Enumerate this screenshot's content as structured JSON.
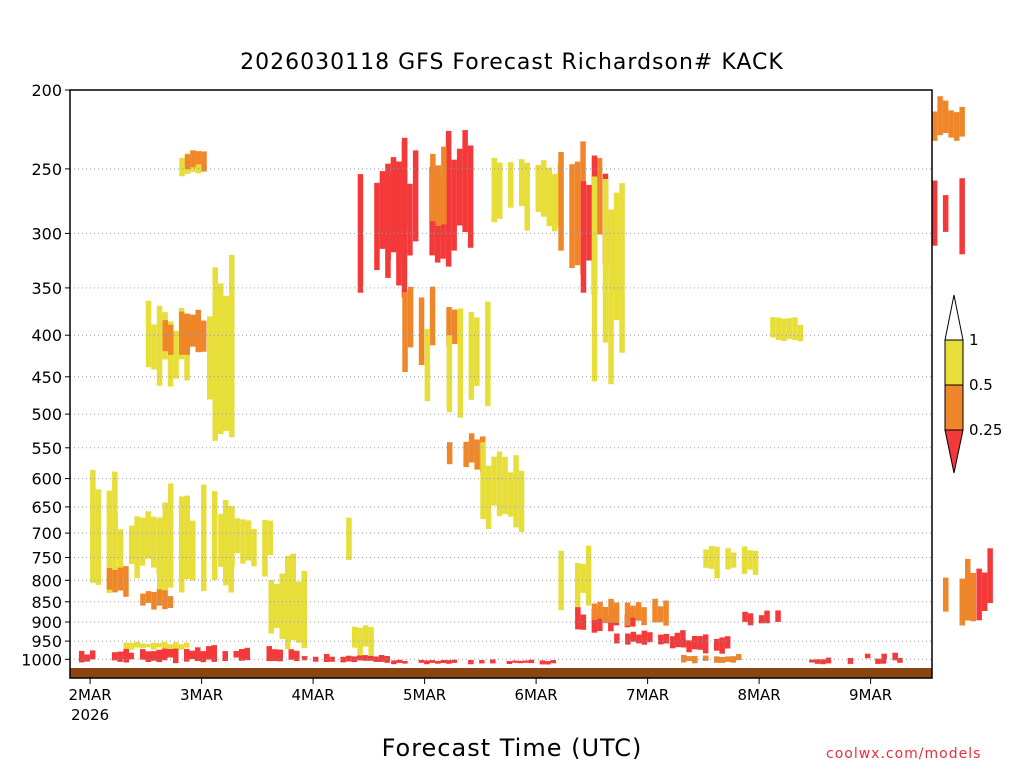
{
  "chart_data": {
    "type": "heatmap",
    "title": "2026030118 GFS Forecast Richardson# KACK",
    "xlabel": "Forecast Time (UTC)",
    "ylabel": "",
    "x_ticks": [
      "2MAR",
      "3MAR",
      "4MAR",
      "5MAR",
      "6MAR",
      "7MAR",
      "8MAR",
      "9MAR"
    ],
    "x_year_label": "2026",
    "y_ticks": [
      200,
      250,
      300,
      350,
      400,
      450,
      500,
      550,
      600,
      650,
      700,
      750,
      800,
      850,
      900,
      950,
      1000
    ],
    "y_scale": "log-pressure",
    "ylim": [
      1025,
      200
    ],
    "grid": "dotted horizontal at pressure levels",
    "legend": {
      "placement": "right",
      "labels": [
        "1",
        "0.5",
        "0.25"
      ],
      "bins": [
        {
          "range": "0.5-1",
          "color": "#e8de3a"
        },
        {
          "range": "0.25-0.5",
          "color": "#f0862a"
        },
        {
          "range": "<0.25",
          "color": "#f4393a"
        }
      ]
    },
    "colors": {
      "low": "#f4393a",
      "mid": "#f0862a",
      "high": "#e8de3a",
      "ground": "#8b4513"
    },
    "regions": [
      {
        "x": [
          1.0,
          1.3
        ],
        "p": [
          560,
          850
        ],
        "cat": "high"
      },
      {
        "x": [
          1.2,
          1.7
        ],
        "p": [
          650,
          800
        ],
        "cat": "high"
      },
      {
        "x": [
          1.6,
          2.3
        ],
        "p": [
          600,
          860
        ],
        "cat": "high"
      },
      {
        "x": [
          2.1,
          2.65
        ],
        "p": [
          640,
          800
        ],
        "cat": "high"
      },
      {
        "x": [
          1.5,
          1.9
        ],
        "p": [
          360,
          470
        ],
        "cat": "high"
      },
      {
        "x": [
          1.65,
          2.05
        ],
        "p": [
          370,
          430
        ],
        "cat": "mid"
      },
      {
        "x": [
          1.8,
          2.15
        ],
        "p": [
          235,
          262
        ],
        "cat": "high"
      },
      {
        "x": [
          1.85,
          2.05
        ],
        "p": [
          236,
          252
        ],
        "cat": "mid"
      },
      {
        "x": [
          1.95,
          2.35
        ],
        "p": [
          310,
          560
        ],
        "cat": "high"
      },
      {
        "x": [
          1.1,
          1.35
        ],
        "p": [
          760,
          840
        ],
        "cat": "mid"
      },
      {
        "x": [
          1.45,
          1.75
        ],
        "p": [
          820,
          870
        ],
        "cat": "mid"
      },
      {
        "x": [
          2.6,
          3.0
        ],
        "p": [
          740,
          980
        ],
        "cat": "high"
      },
      {
        "x": [
          3.25,
          3.55
        ],
        "p": [
          880,
          1000
        ],
        "cat": "high"
      },
      {
        "x": [
          3.1,
          3.4
        ],
        "p": [
          650,
          780
        ],
        "cat": "high"
      },
      {
        "x": [
          3.4,
          3.9
        ],
        "p": [
          230,
          360
        ],
        "cat": "low"
      },
      {
        "x": [
          3.55,
          4.45
        ],
        "p": [
          220,
          340
        ],
        "cat": "low"
      },
      {
        "x": [
          4.0,
          4.3
        ],
        "p": [
          230,
          300
        ],
        "cat": "mid"
      },
      {
        "x": [
          3.8,
          4.3
        ],
        "p": [
          340,
          450
        ],
        "cat": "mid"
      },
      {
        "x": [
          4.0,
          4.6
        ],
        "p": [
          360,
          520
        ],
        "cat": "high"
      },
      {
        "x": [
          4.2,
          4.55
        ],
        "p": [
          520,
          600
        ],
        "cat": "mid"
      },
      {
        "x": [
          4.5,
          4.9
        ],
        "p": [
          540,
          700
        ],
        "cat": "high"
      },
      {
        "x": [
          4.6,
          5.25
        ],
        "p": [
          240,
          300
        ],
        "cat": "high"
      },
      {
        "x": [
          5.15,
          5.6
        ],
        "p": [
          230,
          340
        ],
        "cat": "mid"
      },
      {
        "x": [
          5.4,
          5.75
        ],
        "p": [
          240,
          380
        ],
        "cat": "low"
      },
      {
        "x": [
          5.5,
          5.85
        ],
        "p": [
          230,
          470
        ],
        "cat": "high"
      },
      {
        "x": [
          5.2,
          5.5
        ],
        "p": [
          720,
          880
        ],
        "cat": "high"
      },
      {
        "x": [
          5.35,
          5.9
        ],
        "p": [
          860,
          930
        ],
        "cat": "low"
      },
      {
        "x": [
          5.5,
          6.2
        ],
        "p": [
          840,
          910
        ],
        "cat": "mid"
      },
      {
        "x": [
          5.7,
          6.35
        ],
        "p": [
          920,
          960
        ],
        "cat": "low"
      },
      {
        "x": [
          6.2,
          6.9
        ],
        "p": [
          930,
          985
        ],
        "cat": "low"
      },
      {
        "x": [
          6.3,
          6.85
        ],
        "p": [
          985,
          1012
        ],
        "cat": "mid"
      },
      {
        "x": [
          6.5,
          7.0
        ],
        "p": [
          720,
          800
        ],
        "cat": "high"
      },
      {
        "x": [
          6.85,
          7.25
        ],
        "p": [
          870,
          910
        ],
        "cat": "low"
      },
      {
        "x": [
          7.1,
          7.45
        ],
        "p": [
          380,
          410
        ],
        "cat": "high"
      },
      {
        "x": [
          7.4,
          8.3
        ],
        "p": [
          995,
          1015
        ],
        "cat": "low"
      },
      {
        "x": [
          7.9,
          8.25
        ],
        "p": [
          975,
          1005
        ],
        "cat": "low"
      },
      {
        "x": [
          8.55,
          8.85
        ],
        "p": [
          200,
          240
        ],
        "cat": "mid"
      },
      {
        "x": [
          8.55,
          8.85
        ],
        "p": [
          250,
          320
        ],
        "cat": "low"
      },
      {
        "x": [
          8.65,
          8.95
        ],
        "p": [
          740,
          920
        ],
        "cat": "mid"
      },
      {
        "x": [
          8.9,
          9.1
        ],
        "p": [
          720,
          930
        ],
        "cat": "low"
      },
      {
        "x": [
          0.9,
          1.4
        ],
        "p": [
          975,
          1012
        ],
        "cat": "low"
      },
      {
        "x": [
          1.3,
          2.9
        ],
        "p": [
          960,
          1012
        ],
        "cat": "low"
      },
      {
        "x": [
          2.9,
          3.7
        ],
        "p": [
          985,
          1012
        ],
        "cat": "low"
      },
      {
        "x": [
          3.7,
          5.2
        ],
        "p": [
          1000,
          1015
        ],
        "cat": "low"
      },
      {
        "x": [
          1.3,
          1.9
        ],
        "p": [
          950,
          975
        ],
        "cat": "high"
      }
    ]
  },
  "credit": "coolwx.com/models"
}
